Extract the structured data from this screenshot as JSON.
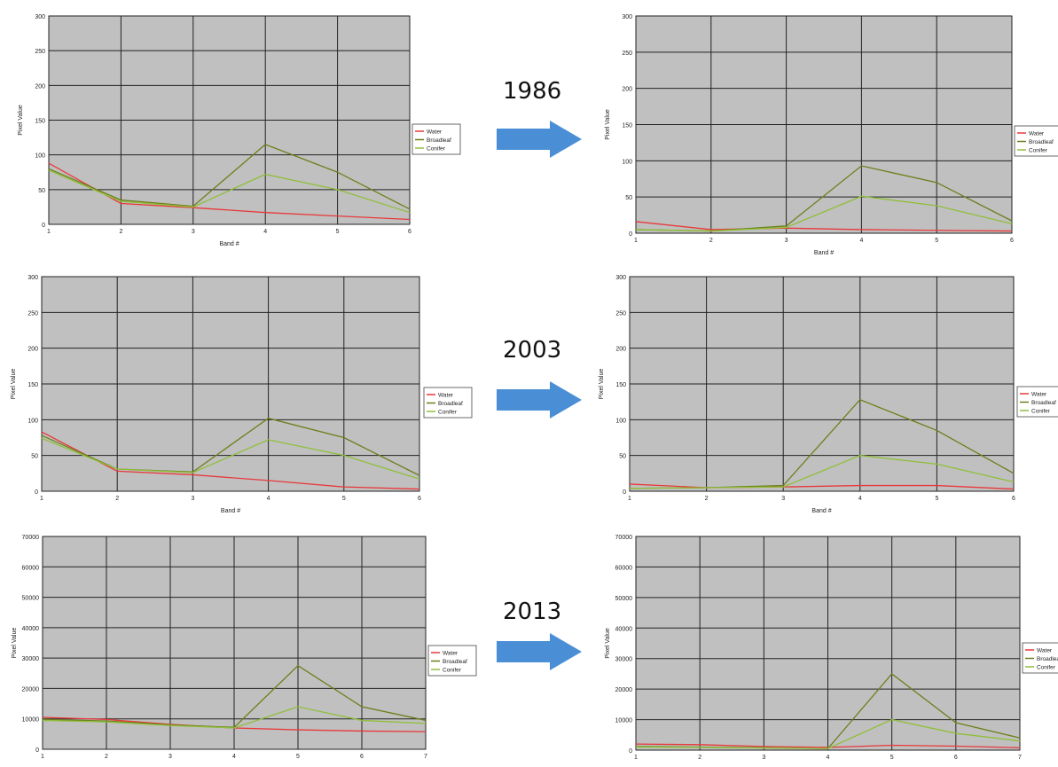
{
  "years": [
    "1986",
    "2003",
    "2013"
  ],
  "colors": {
    "Water": "#e8393b",
    "Broadleaf": "#6b7f1a",
    "Conifer": "#8fbf3a",
    "plot_bg": "#c0c0c0",
    "arrow": "#4a8fd6"
  },
  "chart_data": [
    {
      "type": "line",
      "xlabel": "Band #",
      "ylabel": "Pixel Value",
      "x": [
        1,
        2,
        3,
        4,
        5,
        6
      ],
      "ylim": [
        0,
        300
      ],
      "yticks": [
        0,
        50,
        100,
        150,
        200,
        250,
        300
      ],
      "legend": "right",
      "series": [
        {
          "name": "Water",
          "values": [
            88,
            30,
            24,
            17,
            12,
            7
          ]
        },
        {
          "name": "Broadleaf",
          "values": [
            80,
            35,
            26,
            115,
            75,
            22
          ]
        },
        {
          "name": "Conifer",
          "values": [
            78,
            33,
            25,
            72,
            50,
            17
          ]
        }
      ]
    },
    {
      "type": "line",
      "xlabel": "Band #",
      "ylabel": "Pixel Value",
      "x": [
        1,
        2,
        3,
        4,
        5,
        6
      ],
      "ylim": [
        0,
        300
      ],
      "yticks": [
        0,
        50,
        100,
        150,
        200,
        250,
        300
      ],
      "legend": "right",
      "series": [
        {
          "name": "Water",
          "values": [
            16,
            5,
            7,
            5,
            4,
            3
          ]
        },
        {
          "name": "Broadleaf",
          "values": [
            5,
            3,
            10,
            93,
            70,
            17
          ]
        },
        {
          "name": "Conifer",
          "values": [
            5,
            3,
            8,
            51,
            38,
            13
          ]
        }
      ]
    },
    {
      "type": "line",
      "xlabel": "Band #",
      "ylabel": "Pixel Value",
      "x": [
        1,
        2,
        3,
        4,
        5,
        6
      ],
      "ylim": [
        0,
        300
      ],
      "yticks": [
        0,
        50,
        100,
        150,
        200,
        250,
        300
      ],
      "legend": "right",
      "series": [
        {
          "name": "Water",
          "values": [
            83,
            28,
            23,
            15,
            6,
            3
          ]
        },
        {
          "name": "Broadleaf",
          "values": [
            78,
            31,
            27,
            102,
            75,
            22
          ]
        },
        {
          "name": "Conifer",
          "values": [
            74,
            31,
            26,
            72,
            50,
            17
          ]
        }
      ]
    },
    {
      "type": "line",
      "xlabel": "Band #",
      "ylabel": "Pixel Value",
      "x": [
        1,
        2,
        3,
        4,
        5,
        6
      ],
      "ylim": [
        0,
        300
      ],
      "yticks": [
        0,
        50,
        100,
        150,
        200,
        250,
        300
      ],
      "legend": "right",
      "series": [
        {
          "name": "Water",
          "values": [
            10,
            5,
            6,
            8,
            8,
            3
          ]
        },
        {
          "name": "Broadleaf",
          "values": [
            4,
            5,
            8,
            128,
            85,
            25
          ]
        },
        {
          "name": "Conifer",
          "values": [
            4,
            5,
            6,
            50,
            38,
            13
          ]
        }
      ]
    },
    {
      "type": "line",
      "xlabel": "",
      "ylabel": "Pixel Value",
      "x": [
        1,
        2,
        3,
        4,
        5,
        6,
        7
      ],
      "ylim": [
        0,
        70000
      ],
      "yticks": [
        0,
        10000,
        20000,
        30000,
        40000,
        50000,
        60000,
        70000
      ],
      "legend": "right",
      "series": [
        {
          "name": "Water",
          "values": [
            10500,
            9800,
            8200,
            7000,
            6400,
            6000,
            5800
          ]
        },
        {
          "name": "Broadleaf",
          "values": [
            9800,
            9300,
            8000,
            7200,
            27500,
            14000,
            9500
          ]
        },
        {
          "name": "Conifer",
          "values": [
            9500,
            9000,
            7800,
            7000,
            14000,
            9500,
            8500
          ]
        }
      ]
    },
    {
      "type": "line",
      "xlabel": "",
      "ylabel": "Pixel Value",
      "x": [
        1,
        2,
        3,
        4,
        5,
        6,
        7
      ],
      "ylim": [
        0,
        70000
      ],
      "yticks": [
        0,
        10000,
        20000,
        30000,
        40000,
        50000,
        60000,
        70000
      ],
      "legend": "right",
      "series": [
        {
          "name": "Water",
          "values": [
            2000,
            1800,
            1200,
            900,
            1600,
            1300,
            800
          ]
        },
        {
          "name": "Broadleaf",
          "values": [
            1200,
            1000,
            800,
            500,
            25000,
            9000,
            4000
          ]
        },
        {
          "name": "Conifer",
          "values": [
            1000,
            900,
            700,
            500,
            10000,
            5500,
            3000
          ]
        }
      ]
    }
  ]
}
